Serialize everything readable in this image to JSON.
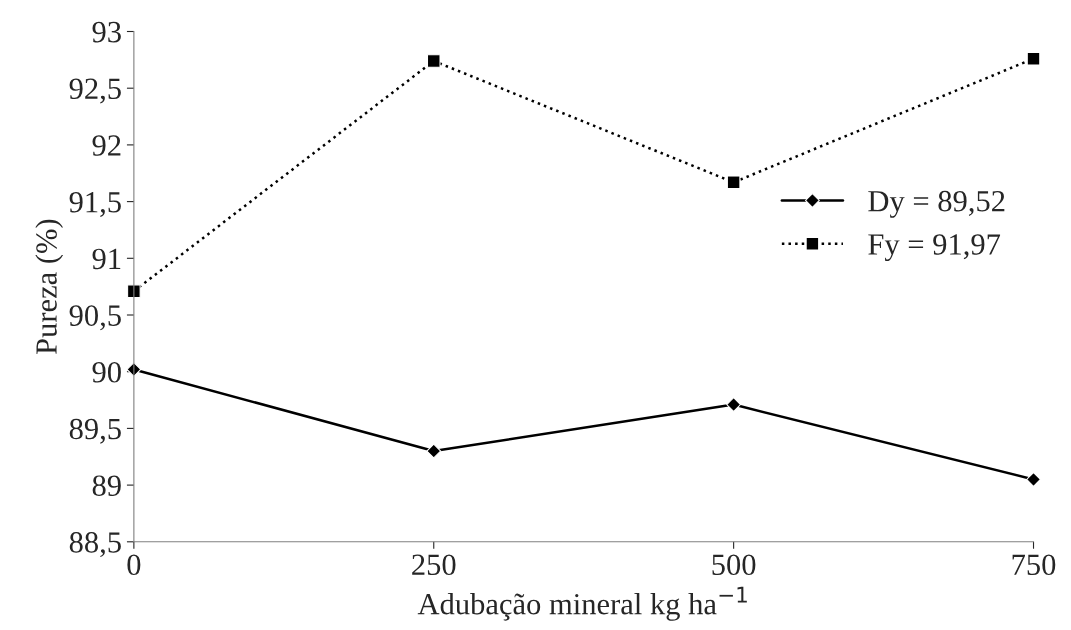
{
  "chart_data": {
    "type": "line",
    "xlabel": "Adubação mineral kg ha$^{−1}$",
    "ylabel": "Pureza (%)",
    "x": [
      0,
      250,
      500,
      750
    ],
    "series": [
      {
        "name": "Dy = 89,52",
        "color": "#000000",
        "marker": "diamond",
        "line_style": "solid",
        "values": [
          90.02,
          89.3,
          89.71,
          89.05
        ]
      },
      {
        "name": "Fy = 91,97",
        "color": "#000000",
        "marker": "square",
        "line_style": "dotted",
        "values": [
          90.71,
          92.74,
          91.67,
          92.76
        ]
      }
    ],
    "xlim": [
      0,
      750
    ],
    "xticks": [
      0,
      250,
      500,
      750
    ],
    "ylim": [
      88.5,
      93
    ],
    "yticks": [
      {
        "value": 88.5,
        "label": "88,5"
      },
      89,
      {
        "value": 89.5,
        "label": "89,5"
      },
      90,
      {
        "value": 90.5,
        "label": "90,5"
      },
      91,
      {
        "value": 91.5,
        "label": "91,5"
      },
      92,
      {
        "value": 92.5,
        "label": "92,5"
      },
      93
    ],
    "grid": false,
    "legend": "right"
  }
}
